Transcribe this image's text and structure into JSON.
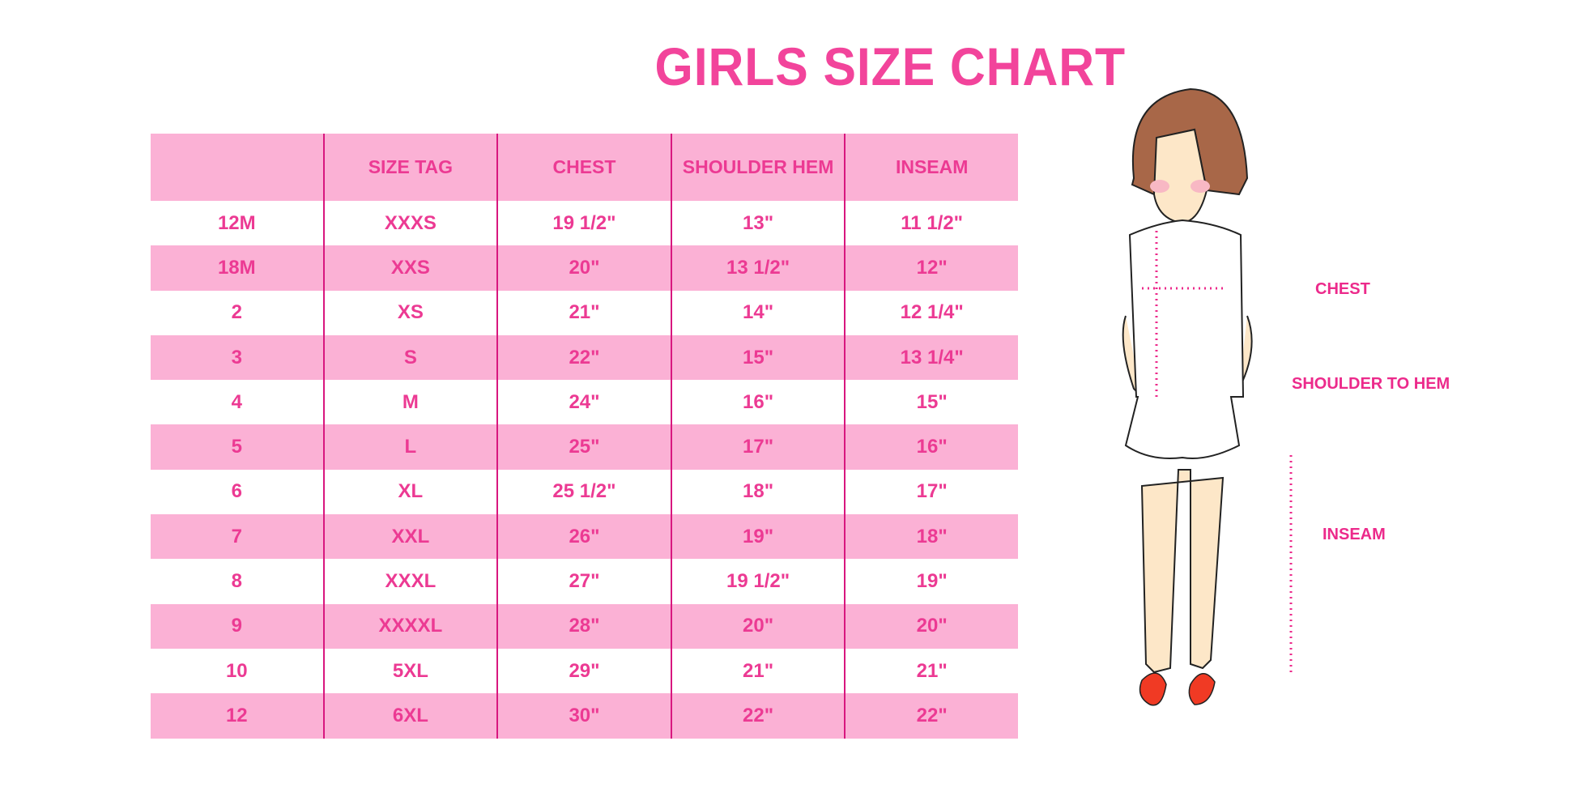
{
  "title": "GIRLS SIZE CHART",
  "table": {
    "headers": [
      "",
      "SIZE TAG",
      "CHEST",
      "SHOULDER HEM",
      "INSEAM"
    ],
    "rows": [
      [
        "12M",
        "XXXS",
        "19 1/2\"",
        "13\"",
        "11 1/2\""
      ],
      [
        "18M",
        "XXS",
        "20\"",
        "13 1/2\"",
        "12\""
      ],
      [
        "2",
        "XS",
        "21\"",
        "14\"",
        "12 1/4\""
      ],
      [
        "3",
        "S",
        "22\"",
        "15\"",
        "13 1/4\""
      ],
      [
        "4",
        "M",
        "24\"",
        "16\"",
        "15\""
      ],
      [
        "5",
        "L",
        "25\"",
        "17\"",
        "16\""
      ],
      [
        "6",
        "XL",
        "25 1/2\"",
        "18\"",
        "17\""
      ],
      [
        "7",
        "XXL",
        "26\"",
        "19\"",
        "18\""
      ],
      [
        "8",
        "XXXL",
        "27\"",
        "19 1/2\"",
        "19\""
      ],
      [
        "9",
        "XXXXL",
        "28\"",
        "20\"",
        "20\""
      ],
      [
        "10",
        "5XL",
        "29\"",
        "21\"",
        "21\""
      ],
      [
        "12",
        "6XL",
        "30\"",
        "22\"",
        "22\""
      ]
    ]
  },
  "diagram": {
    "chest_label": "CHEST",
    "shoulder_label": "SHOULDER TO HEM",
    "inseam_label": "INSEAM"
  },
  "colors": {
    "title": "#f2449b",
    "row_pink": "#fbb1d5",
    "text": "#ec3a93",
    "divider": "#d8177f"
  }
}
